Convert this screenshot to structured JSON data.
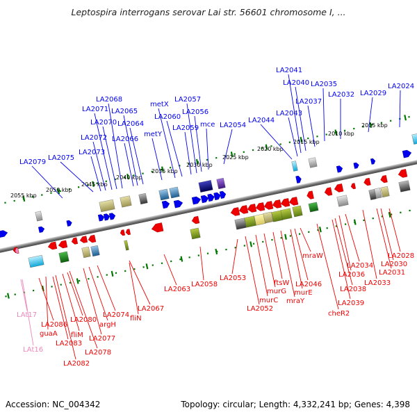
{
  "title": "Leptospira interrogans serovar Lai str. 56601 chromosome I, ...",
  "footer": {
    "accession": "Accession: NC_004342",
    "topology": "Topology: circular; Length: 4,332,241 bp; Genes: 4,398"
  },
  "colors": {
    "forward_gene": "#0000ee",
    "reverse_gene": "#ee0000",
    "rna_gene": "#ee88bb",
    "backbone": "#808080",
    "tick": "#007700"
  },
  "scale_labels": [
    "2005 kbp",
    "2010 kbp",
    "2015 kbp",
    "2020 kbp",
    "2025 kbp",
    "2030 kbp",
    "2035 kbp",
    "2040 kbp",
    "2045 kbp",
    "2050 kbp",
    "2055 kbp"
  ],
  "forward_genes": [
    "LA2024",
    "LA2029",
    "LA2032",
    "LA2035",
    "LA2037",
    "LA2040",
    "LA2041",
    "LA2043",
    "LA2044",
    "LA2054",
    "mce",
    "LA2056",
    "LA2057",
    "LA2059",
    "LA2060",
    "metX",
    "metY",
    "LA2064",
    "LA2065",
    "LA2066",
    "LA2068",
    "LA2070",
    "LA2071",
    "LA2072",
    "LA2073",
    "LA2075",
    "LA2079"
  ],
  "reverse_genes": [
    "LA2028",
    "LA2030",
    "LA2031",
    "LA2033",
    "LA2034",
    "LA2036",
    "LA2038",
    "LA2039",
    "cheR2",
    "mraW",
    "LA2046",
    "murE",
    "mraY",
    "ftsW",
    "murG",
    "murC",
    "LA2052",
    "LA2053",
    "LA2058",
    "LA2063",
    "LA2067",
    "fliN",
    "LA2074",
    "argH",
    "LA2077",
    "LA2078",
    "LA2080",
    "fliM",
    "LA2082",
    "LA2083",
    "guaA",
    "LA2086"
  ],
  "rna_genes": [
    "LAt17",
    "LAt16"
  ]
}
